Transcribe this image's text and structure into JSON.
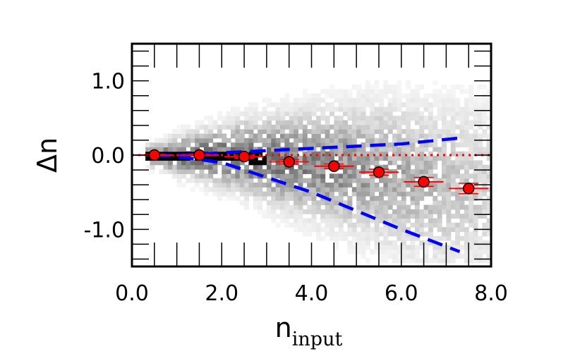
{
  "chart_data": {
    "type": "scatter",
    "title": "",
    "xlabel": "n",
    "xlabel_subscript": "input",
    "ylabel": "Δn",
    "xlim": [
      0.0,
      8.0
    ],
    "ylim": [
      -1.5,
      1.5
    ],
    "x_ticks": [
      0.0,
      2.0,
      4.0,
      6.0,
      8.0
    ],
    "x_tick_labels": [
      "0.0",
      "2.0",
      "4.0",
      "6.0",
      "8.0"
    ],
    "y_ticks": [
      -1.0,
      0.0,
      1.0
    ],
    "y_tick_labels": [
      "-1.0",
      "0.0",
      "1.0"
    ],
    "grid": false,
    "colors": {
      "points": "#ff0000",
      "error_bars": "#ff0000",
      "zero_line": "#ff0000",
      "envelope": "#0000ff",
      "density": "#000000"
    },
    "series": [
      {
        "name": "binned median offset",
        "style": "red circles with error bars",
        "x": [
          0.5,
          1.5,
          2.5,
          3.5,
          4.5,
          5.5,
          6.5,
          7.5
        ],
        "y": [
          0.0,
          0.0,
          -0.02,
          -0.09,
          -0.15,
          -0.23,
          -0.36,
          -0.45
        ],
        "yerr": [
          0.01,
          0.01,
          0.02,
          0.03,
          0.03,
          0.04,
          0.06,
          0.07
        ]
      },
      {
        "name": "zero reference",
        "style": "red dotted line",
        "x": [
          0.0,
          8.0
        ],
        "y": [
          0.0,
          0.0
        ]
      },
      {
        "name": "upper envelope",
        "style": "blue dashed line",
        "x": [
          0.5,
          1.0,
          2.0,
          3.0,
          4.0,
          5.0,
          6.0,
          7.3
        ],
        "y": [
          0.0,
          0.0,
          0.03,
          0.06,
          0.09,
          0.12,
          0.15,
          0.23
        ]
      },
      {
        "name": "lower envelope",
        "style": "blue dashed line",
        "x": [
          0.5,
          1.0,
          2.0,
          3.0,
          4.0,
          5.0,
          6.0,
          7.3
        ],
        "y": [
          0.0,
          -0.02,
          -0.1,
          -0.3,
          -0.5,
          -0.75,
          -1.0,
          -1.3
        ]
      }
    ],
    "density_background": "grey 2D histogram of Δn vs n_input, darkest near Δn = 0 for n_input 0.5–3"
  }
}
